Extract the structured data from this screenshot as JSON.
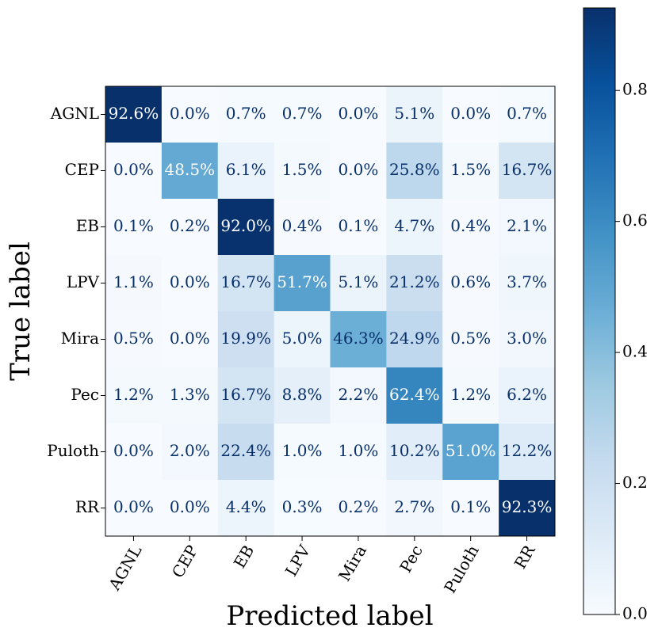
{
  "chart_data": {
    "type": "heatmap",
    "x_label": "Predicted label",
    "y_label": "True label",
    "x_categories": [
      "AGNL",
      "CEP",
      "EB",
      "LPV",
      "Mira",
      "Pec",
      "Puloth",
      "RR"
    ],
    "y_categories": [
      "AGNL",
      "CEP",
      "EB",
      "LPV",
      "Mira",
      "Pec",
      "Puloth",
      "RR"
    ],
    "values": [
      [
        0.926,
        0.0,
        0.007,
        0.007,
        0.0,
        0.051,
        0.0,
        0.007
      ],
      [
        0.0,
        0.485,
        0.061,
        0.015,
        0.0,
        0.258,
        0.015,
        0.167
      ],
      [
        0.001,
        0.002,
        0.92,
        0.004,
        0.001,
        0.047,
        0.004,
        0.021
      ],
      [
        0.011,
        0.0,
        0.167,
        0.517,
        0.051,
        0.212,
        0.006,
        0.037
      ],
      [
        0.005,
        0.0,
        0.199,
        0.05,
        0.463,
        0.249,
        0.005,
        0.03
      ],
      [
        0.012,
        0.013,
        0.167,
        0.088,
        0.022,
        0.624,
        0.012,
        0.062
      ],
      [
        0.0,
        0.02,
        0.224,
        0.01,
        0.01,
        0.102,
        0.51,
        0.122
      ],
      [
        0.0,
        0.0,
        0.044,
        0.003,
        0.002,
        0.027,
        0.001,
        0.923
      ]
    ],
    "value_labels": [
      [
        "92.6%",
        "0.0%",
        "0.7%",
        "0.7%",
        "0.0%",
        "5.1%",
        "0.0%",
        "0.7%"
      ],
      [
        "0.0%",
        "48.5%",
        "6.1%",
        "1.5%",
        "0.0%",
        "25.8%",
        "1.5%",
        "16.7%"
      ],
      [
        "0.1%",
        "0.2%",
        "92.0%",
        "0.4%",
        "0.1%",
        "4.7%",
        "0.4%",
        "2.1%"
      ],
      [
        "1.1%",
        "0.0%",
        "16.7%",
        "51.7%",
        "5.1%",
        "21.2%",
        "0.6%",
        "3.7%"
      ],
      [
        "0.5%",
        "0.0%",
        "19.9%",
        "5.0%",
        "46.3%",
        "24.9%",
        "0.5%",
        "3.0%"
      ],
      [
        "1.2%",
        "1.3%",
        "16.7%",
        "8.8%",
        "2.2%",
        "62.4%",
        "1.2%",
        "6.2%"
      ],
      [
        "0.0%",
        "2.0%",
        "22.4%",
        "1.0%",
        "1.0%",
        "10.2%",
        "51.0%",
        "12.2%"
      ],
      [
        "0.0%",
        "0.0%",
        "4.4%",
        "0.3%",
        "0.2%",
        "2.7%",
        "0.1%",
        "92.3%"
      ]
    ],
    "colormap": "Blues",
    "zlim": [
      0,
      0.926
    ],
    "zticks": [
      {
        "value": 0,
        "label": "0.0"
      },
      {
        "value": 0.2,
        "label": "0.2"
      },
      {
        "value": 0.4,
        "label": "0.4"
      },
      {
        "value": 0.6,
        "label": "0.6"
      },
      {
        "value": 0.8,
        "label": "0.8"
      }
    ]
  }
}
